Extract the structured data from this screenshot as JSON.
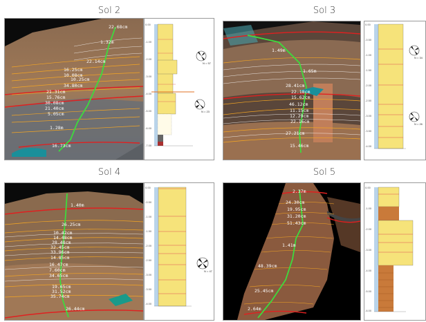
{
  "panels": [
    {
      "id": "sol2",
      "title": "Sol 2",
      "labels": [
        "22.68cm",
        "1.32m",
        "22.14cm",
        "16.25cm",
        "10.08cm",
        "10.25cm",
        "34.80cm",
        "21.31cm",
        "15.76cm",
        "30.08cm",
        "21.40cm",
        "5.05cm",
        "1.28m",
        "16.73cm"
      ],
      "ticks": [
        "0.00",
        "-1.00",
        "-2.00",
        "-3.00",
        "-4.00",
        "-5.00",
        "-6.00",
        "-7.00"
      ],
      "rose_counts": [
        "N = 57",
        "N = 23"
      ]
    },
    {
      "id": "sol3",
      "title": "Sol 3",
      "labels": [
        "1.49m",
        "1.65m",
        "28.41cm",
        "22.18cm",
        "15.62cm",
        "46.12cm",
        "11.15cm",
        "12.29cm",
        "22.16cm",
        "27.21cm",
        "15.46cm"
      ],
      "ticks": [
        "0.00",
        "-0.50",
        "-1.00",
        "-1.50",
        "-2.00",
        "-2.50",
        "-3.00",
        "-3.50",
        "-4.00"
      ],
      "rose_counts": [
        "N = 34",
        "N = 26"
      ]
    },
    {
      "id": "sol4",
      "title": "Sol 4",
      "labels": [
        "1.40m",
        "26.25cm",
        "10.42cm",
        "14.48cm",
        "28.48cm",
        "32.45cm",
        "33.96cm",
        "14.85cm",
        "16.47cm",
        "7.60cm",
        "34.65cm",
        "19.65cm",
        "31.52cm",
        "35.74cm",
        "26.44cm"
      ],
      "ticks": [
        "0.00",
        "-0.50",
        "-1.00",
        "-1.50",
        "-2.00",
        "-2.50",
        "-3.00",
        "-3.50",
        "-4.00"
      ],
      "rose_counts": [
        "N = 47"
      ]
    },
    {
      "id": "sol5",
      "title": "Sol 5",
      "labels": [
        "2.37m",
        "24.30cm",
        "19.95cm",
        "31.20cm",
        "51.43cm",
        "1.41m",
        "48.39cm",
        "25.45cm",
        "2.64m"
      ],
      "ticks": [
        "0.00",
        "-1.00",
        "-2.00",
        "-3.00",
        "-4.00",
        "-5.00",
        "-6.00"
      ],
      "rose_counts": []
    }
  ]
}
